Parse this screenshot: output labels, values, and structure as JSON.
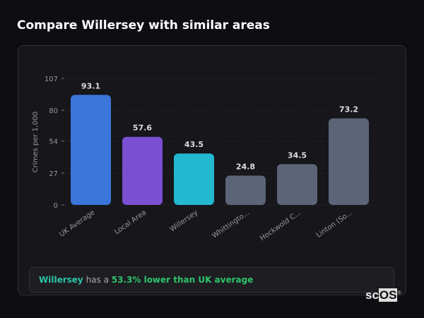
{
  "title": "Compare Willersey with similar areas",
  "chart_data": {
    "type": "bar",
    "categories": [
      "UK Average",
      "Local Area",
      "Willersey",
      "Whittingto...",
      "Hockwold C...",
      "Linton (So..."
    ],
    "values": [
      93.1,
      57.6,
      43.5,
      24.8,
      34.5,
      73.2
    ],
    "colors": [
      "#3b76db",
      "#7b4fd1",
      "#22b8cf",
      "#5b6577",
      "#5b6577",
      "#5b6577"
    ],
    "ylabel": "Crimes per 1,000",
    "yticks": [
      0,
      27,
      54,
      80,
      107
    ],
    "ylim": [
      0,
      107
    ],
    "grid": true
  },
  "info": {
    "area": "Willersey",
    "middle": " has a ",
    "stat": "53.3% lower than UK average"
  },
  "logo": {
    "a": "sc",
    "b": "OS",
    "mark": "®"
  }
}
